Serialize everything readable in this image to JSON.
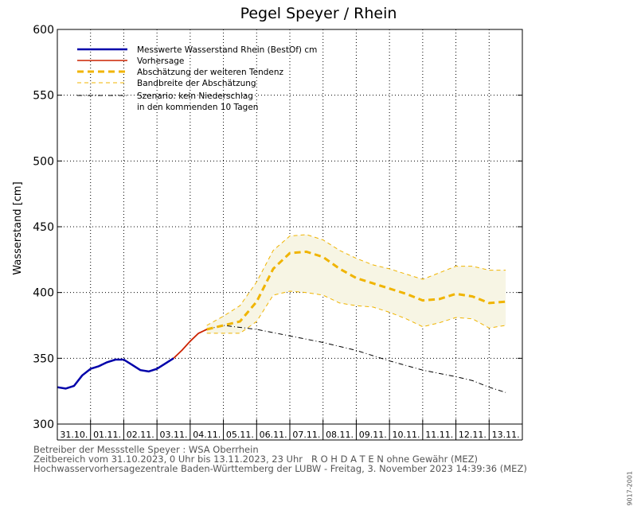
{
  "chart_data": {
    "type": "line",
    "title": "Pegel Speyer / Rhein",
    "ylabel": "Wasserstand [cm]",
    "ylim": [
      300,
      600
    ],
    "yticks": [
      300,
      350,
      400,
      450,
      500,
      550,
      600
    ],
    "x_date_labels": [
      "31.10.",
      "01.11.",
      "02.11.",
      "03.11.",
      "04.11.",
      "05.11.",
      "06.11.",
      "07.11.",
      "08.11.",
      "09.11.",
      "10.11.",
      "11.11.",
      "12.11.",
      "13.11."
    ],
    "x_start": "31.10.2023 00:00",
    "x_end": "13.11.2023 23:00",
    "grid": true,
    "legend_position": "top-left",
    "colors": {
      "measured": "#0000aa",
      "forecast": "#cc2200",
      "tendency": "#f0b400",
      "band_line": "#f0b400",
      "band_fill": "#f7f5e4",
      "scenario": "#000000"
    },
    "legend": [
      {
        "key": "measured",
        "label": "Messwerte Wasserstand Rhein (BestOf)  cm",
        "style": "solid-thick"
      },
      {
        "key": "forecast",
        "label": "Vorhersage",
        "style": "solid"
      },
      {
        "key": "tendency",
        "label": "Abschätzung der weiteren Tendenz",
        "style": "dashed-thick"
      },
      {
        "key": "band",
        "label": "Bandbreite der Abschätzung",
        "style": "dashed-thin"
      },
      {
        "key": "scenario",
        "label": "Szenario: kein Niederschlag",
        "label2": "in den kommenden 10 Tagen",
        "style": "dash-dot"
      }
    ],
    "series": [
      {
        "name": "Messwerte Wasserstand Rhein (BestOf)  cm",
        "key": "measured",
        "x": [
          "31.10. 00:00",
          "31.10. 06:00",
          "31.10. 12:00",
          "31.10. 18:00",
          "01.11. 00:00",
          "01.11. 06:00",
          "01.11. 12:00",
          "01.11. 18:00",
          "02.11. 00:00",
          "02.11. 06:00",
          "02.11. 12:00",
          "02.11. 18:00",
          "03.11. 00:00",
          "03.11. 06:00",
          "03.11. 12:00"
        ],
        "values": [
          328,
          327,
          329,
          337,
          342,
          344,
          347,
          349,
          349,
          345,
          341,
          340,
          342,
          346,
          350
        ]
      },
      {
        "name": "Vorhersage",
        "key": "forecast",
        "x": [
          "03.11. 12:00",
          "03.11. 18:00",
          "04.11. 00:00",
          "04.11. 06:00",
          "04.11. 12:00"
        ],
        "values": [
          350,
          356,
          363,
          369,
          372
        ]
      },
      {
        "name": "Abschätzung der weiteren Tendenz",
        "key": "tendency",
        "x": [
          "04.11. 12:00",
          "05.11. 00:00",
          "05.11. 12:00",
          "06.11. 00:00",
          "06.11. 12:00",
          "07.11. 00:00",
          "07.11. 12:00",
          "08.11. 00:00",
          "08.11. 12:00",
          "09.11. 00:00",
          "09.11. 12:00",
          "10.11. 00:00",
          "10.11. 12:00",
          "11.11. 00:00",
          "11.11. 12:00",
          "12.11. 00:00",
          "12.11. 12:00",
          "13.11. 00:00",
          "13.11. 12:00"
        ],
        "values": [
          372,
          375,
          378,
          393,
          418,
          430,
          431,
          427,
          418,
          411,
          407,
          403,
          399,
          394,
          395,
          399,
          397,
          392,
          393
        ]
      },
      {
        "name": "Bandbreite der Abschätzung (oben)",
        "key": "band_upper",
        "x": [
          "04.11. 12:00",
          "05.11. 00:00",
          "05.11. 12:00",
          "06.11. 00:00",
          "06.11. 12:00",
          "07.11. 00:00",
          "07.11. 12:00",
          "08.11. 00:00",
          "08.11. 12:00",
          "09.11. 00:00",
          "09.11. 12:00",
          "10.11. 00:00",
          "10.11. 12:00",
          "11.11. 00:00",
          "11.11. 12:00",
          "12.11. 00:00",
          "12.11. 12:00",
          "13.11. 00:00",
          "13.11. 12:00"
        ],
        "values": [
          375,
          382,
          390,
          408,
          432,
          443,
          444,
          440,
          432,
          426,
          421,
          418,
          414,
          410,
          415,
          420,
          420,
          417,
          417
        ]
      },
      {
        "name": "Bandbreite der Abschätzung (unten)",
        "key": "band_lower",
        "x": [
          "04.11. 12:00",
          "05.11. 00:00",
          "05.11. 12:00",
          "06.11. 00:00",
          "06.11. 12:00",
          "07.11. 00:00",
          "07.11. 12:00",
          "08.11. 00:00",
          "08.11. 12:00",
          "09.11. 00:00",
          "09.11. 12:00",
          "10.11. 00:00",
          "10.11. 12:00",
          "11.11. 00:00",
          "11.11. 12:00",
          "12.11. 00:00",
          "12.11. 12:00",
          "13.11. 00:00",
          "13.11. 12:00"
        ],
        "values": [
          369,
          369,
          369,
          378,
          398,
          401,
          400,
          398,
          392,
          390,
          389,
          385,
          380,
          374,
          377,
          381,
          380,
          373,
          375
        ]
      },
      {
        "name": "Szenario: kein Niederschlag",
        "key": "scenario",
        "x": [
          "04.11. 12:00",
          "05.11. 00:00",
          "06.11. 00:00",
          "07.11. 00:00",
          "08.11. 00:00",
          "09.11. 00:00",
          "10.11. 00:00",
          "11.11. 00:00",
          "12.11. 00:00",
          "12.11. 12:00",
          "13.11. 00:00",
          "13.11. 12:00"
        ],
        "values": [
          372,
          375,
          372,
          367,
          362,
          356,
          348,
          341,
          336,
          333,
          328,
          324
        ]
      }
    ]
  },
  "footer": {
    "line1": "Betreiber der Messstelle Speyer : WSA Oberrhein",
    "line2": "Zeitbereich vom 31.10.2023, 0 Uhr bis 13.11.2023, 23 Uhr   R O H D A T E N ohne Gewähr (MEZ)",
    "line3": "Hochwasservorhersagezentrale Baden-Württemberg der LUBW - Freitag, 3. November 2023 14:39:36 (MEZ)"
  },
  "station_id": "9017-2001"
}
